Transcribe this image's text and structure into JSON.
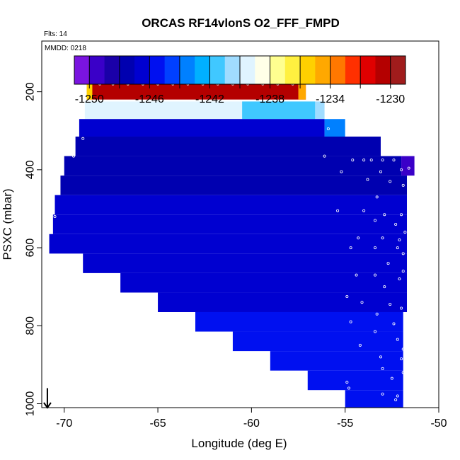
{
  "chart_data": {
    "type": "heatmap",
    "title": "ORCAS RF14vlonS O2_FFF_FMPD",
    "flights_note": "Flts: 14",
    "date_note": "MMDD: 0218",
    "xlabel": "Longitude (deg E)",
    "ylabel": "PSXC (mbar)",
    "xlim": [
      -71.2,
      -50
    ],
    "ylim": [
      1010,
      70
    ],
    "x_ticks": [
      -70,
      -65,
      -60,
      -55,
      -50
    ],
    "x_tick_labels": [
      "-70",
      "-65",
      "-60",
      "-55",
      "-50"
    ],
    "y_ticks": [
      200,
      400,
      600,
      800,
      1000
    ],
    "y_tick_labels": [
      "200",
      "400",
      "600",
      "800",
      "1000"
    ],
    "colorbar": {
      "min": -1251,
      "max": -1229,
      "ticks": [
        -1250,
        -1246,
        -1242,
        -1238,
        -1234,
        -1230
      ],
      "tick_labels": [
        "-1250",
        "-1246",
        "-1242",
        "-1238",
        "-1234",
        "-1230"
      ],
      "minor_ticks": [
        -1248,
        -1244,
        -1240,
        -1236,
        -1232
      ],
      "colors": [
        "#7a14e0",
        "#3a00c8",
        "#1a00a8",
        "#0000b0",
        "#0000d0",
        "#0010f0",
        "#0040ff",
        "#0080ff",
        "#00b0ff",
        "#40c8ff",
        "#a0dcff",
        "#e0f4ff",
        "#ffffe8",
        "#ffff90",
        "#fff040",
        "#ffd000",
        "#ffa800",
        "#ff7800",
        "#ff3000",
        "#e00000",
        "#b40000",
        "#a01c1c"
      ]
    },
    "arrow": {
      "x": -70.9,
      "y_start": 960,
      "y_end": 1010
    },
    "cells": [
      {
        "x0": -68.8,
        "x1": -57.1,
        "y0": 180,
        "y1": 220,
        "v": -1231.0
      },
      {
        "x0": -68.8,
        "x1": -68.5,
        "y0": 180,
        "y1": 220,
        "v": -1235.5
      },
      {
        "x0": -57.5,
        "x1": -57.1,
        "y0": 180,
        "y1": 220,
        "v": -1234.5
      },
      {
        "x0": -68.9,
        "x1": -56.6,
        "y0": 225,
        "y1": 270,
        "v": -1239.3
      },
      {
        "x0": -60.5,
        "x1": -56.6,
        "y0": 225,
        "y1": 270,
        "v": -1241.5
      },
      {
        "x0": -56.6,
        "x1": -56.1,
        "y0": 225,
        "y1": 270,
        "v": -1240.2
      },
      {
        "x0": -69.2,
        "x1": -56.1,
        "y0": 270,
        "y1": 315,
        "v": -1247.0
      },
      {
        "x0": -56.1,
        "x1": -55.0,
        "y0": 270,
        "y1": 315,
        "v": -1244.0
      },
      {
        "x0": -69.4,
        "x1": -53.1,
        "y0": 315,
        "y1": 365,
        "v": -1248.0
      },
      {
        "x0": -70.0,
        "x1": -52.0,
        "y0": 365,
        "y1": 415,
        "v": -1248.0
      },
      {
        "x0": -52.0,
        "x1": -51.3,
        "y0": 365,
        "y1": 415,
        "v": -1249.5
      },
      {
        "x0": -70.2,
        "x1": -51.7,
        "y0": 415,
        "y1": 465,
        "v": -1247.6
      },
      {
        "x0": -70.5,
        "x1": -51.7,
        "y0": 465,
        "y1": 515,
        "v": -1246.9
      },
      {
        "x0": -70.6,
        "x1": -51.7,
        "y0": 515,
        "y1": 565,
        "v": -1246.5
      },
      {
        "x0": -70.8,
        "x1": -51.7,
        "y0": 565,
        "y1": 615,
        "v": -1246.4
      },
      {
        "x0": -69.0,
        "x1": -51.7,
        "y0": 615,
        "y1": 665,
        "v": -1246.2
      },
      {
        "x0": -67.0,
        "x1": -51.7,
        "y0": 665,
        "y1": 715,
        "v": -1246.3
      },
      {
        "x0": -65.0,
        "x1": -51.7,
        "y0": 715,
        "y1": 765,
        "v": -1246.1
      },
      {
        "x0": -63.0,
        "x1": -51.9,
        "y0": 765,
        "y1": 815,
        "v": -1246.0
      },
      {
        "x0": -61.0,
        "x1": -51.9,
        "y0": 815,
        "y1": 865,
        "v": -1245.8
      },
      {
        "x0": -59.0,
        "x1": -51.9,
        "y0": 865,
        "y1": 915,
        "v": -1245.7
      },
      {
        "x0": -57.0,
        "x1": -51.9,
        "y0": 915,
        "y1": 965,
        "v": -1245.6
      },
      {
        "x0": -55.0,
        "x1": -51.9,
        "y0": 965,
        "y1": 1010,
        "v": -1245.5
      }
    ],
    "points": [
      [
        -68.1,
        180
      ],
      [
        -67.4,
        180
      ],
      [
        -66.6,
        180
      ],
      [
        -65.8,
        180
      ],
      [
        -65.0,
        180
      ],
      [
        -64.2,
        180
      ],
      [
        -63.4,
        180
      ],
      [
        -62.6,
        180
      ],
      [
        -61.8,
        180
      ],
      [
        -61.0,
        180
      ],
      [
        -60.2,
        180
      ],
      [
        -59.4,
        180
      ],
      [
        -58.6,
        180
      ],
      [
        -57.8,
        180
      ],
      [
        -69.0,
        320
      ],
      [
        -69.5,
        365
      ],
      [
        -55.9,
        295
      ],
      [
        -56.1,
        365
      ],
      [
        -54.6,
        375
      ],
      [
        -54.0,
        375
      ],
      [
        -53.6,
        375
      ],
      [
        -53.0,
        375
      ],
      [
        -52.4,
        375
      ],
      [
        -53.1,
        405
      ],
      [
        -52.0,
        400
      ],
      [
        -51.6,
        396
      ],
      [
        -55.2,
        405
      ],
      [
        -53.8,
        425
      ],
      [
        -52.6,
        430
      ],
      [
        -51.9,
        440
      ],
      [
        -53.3,
        470
      ],
      [
        -55.4,
        505
      ],
      [
        -54.0,
        505
      ],
      [
        -52.9,
        515
      ],
      [
        -52.0,
        515
      ],
      [
        -70.5,
        520
      ],
      [
        -53.4,
        530
      ],
      [
        -52.3,
        540
      ],
      [
        -51.8,
        560
      ],
      [
        -54.3,
        575
      ],
      [
        -53.0,
        575
      ],
      [
        -52.1,
        580
      ],
      [
        -54.7,
        600
      ],
      [
        -53.4,
        600
      ],
      [
        -52.2,
        600
      ],
      [
        -51.9,
        615
      ],
      [
        -52.7,
        640
      ],
      [
        -51.9,
        660
      ],
      [
        -53.4,
        670
      ],
      [
        -54.4,
        670
      ],
      [
        -52.1,
        680
      ],
      [
        -52.9,
        700
      ],
      [
        -54.9,
        725
      ],
      [
        -54.1,
        740
      ],
      [
        -52.6,
        745
      ],
      [
        -52.0,
        755
      ],
      [
        -53.3,
        770
      ],
      [
        -54.7,
        790
      ],
      [
        -52.4,
        795
      ],
      [
        -53.4,
        815
      ],
      [
        -52.2,
        835
      ],
      [
        -54.2,
        850
      ],
      [
        -51.9,
        860
      ],
      [
        -53.1,
        880
      ],
      [
        -52.0,
        885
      ],
      [
        -53.0,
        910
      ],
      [
        -51.9,
        920
      ],
      [
        -52.5,
        935
      ],
      [
        -54.9,
        945
      ],
      [
        -54.8,
        960
      ],
      [
        -53.0,
        975
      ],
      [
        -52.3,
        990
      ],
      [
        -51.8,
        960
      ],
      [
        -52.2,
        980
      ]
    ]
  }
}
